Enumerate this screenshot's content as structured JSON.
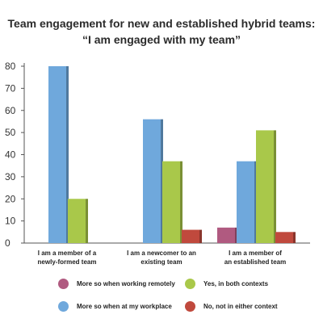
{
  "chart_data": {
    "type": "bar",
    "title_lines": [
      "Team engagement for new and established hybrid teams:",
      "“I am engaged with my team”"
    ],
    "categories": [
      [
        "I am a member of a",
        "newly-formed team"
      ],
      [
        "I am a newcomer to an",
        "existing team"
      ],
      [
        "I am a member of",
        "an established team"
      ]
    ],
    "series": [
      {
        "name": "More so when working remotely",
        "color": "#b05a80",
        "values": [
          0,
          0,
          7
        ]
      },
      {
        "name": "More so when at my workplace",
        "color": "#6fa8dc",
        "values": [
          80,
          56,
          37
        ]
      },
      {
        "name": "Yes, in both contexts",
        "color": "#a9c84a",
        "values": [
          20,
          37,
          51
        ]
      },
      {
        "name": "No, not in either context",
        "color": "#c0493d",
        "values": [
          0,
          6,
          5
        ]
      }
    ],
    "y_ticks": [
      0,
      10,
      20,
      30,
      40,
      50,
      60,
      70,
      80
    ],
    "ylim": [
      0,
      80
    ],
    "grid": false,
    "legend_position": "bottom"
  }
}
